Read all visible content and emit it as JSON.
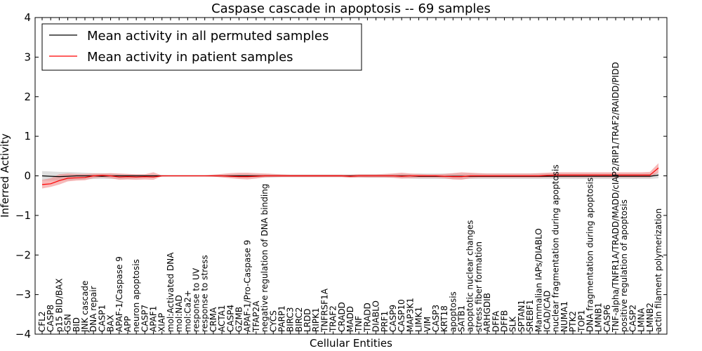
{
  "chart_data": {
    "type": "line",
    "title": "Caspase cascade in apoptosis -- 69 samples",
    "xlabel": "Cellular Entities",
    "ylabel": "Inferred Activity",
    "ylim": [
      -4,
      4
    ],
    "yticks": [
      4,
      3,
      2,
      1,
      0,
      -1,
      -2,
      -3,
      -4
    ],
    "ytick_labels": [
      "4",
      "3",
      "2",
      "1",
      "0",
      "−1",
      "−2",
      "−3",
      "−4"
    ],
    "legend_position": "top-left",
    "categories": [
      "CFL2",
      "CASP8",
      "p15 BID/BAX",
      "GSN",
      "BID",
      "JNK cascade",
      "DNA repair",
      "CASP1",
      "BAX",
      "APAF-1/Caspase 9",
      "APP",
      "neuron apoptosis",
      "CASP7",
      "APAF1",
      "XIAP",
      "mol:Activated DNA",
      "mol:NAD",
      "mol:Ca2+",
      "response to UV",
      "response to stress",
      "CRMA",
      "ACTA1",
      "CASP4",
      "GZMB",
      "APAF-1/Pro-Caspase 9",
      "TFAP2A",
      "negative regulation of DNA binding",
      "CYCS",
      "PARP1",
      "BIRC3",
      "BIRC2",
      "LRDD",
      "RIPK1",
      "TNFRSF1A",
      "TRAF2",
      "CRADD",
      "MADD",
      "TNF",
      "TRADD",
      "DIABLO",
      "PRF1",
      "CASP9",
      "CASP10",
      "MAP3K1",
      "LIMK1",
      "VIM",
      "CASP3",
      "KRT18",
      "apoptosis",
      "SATB1",
      "apoptotic nuclear changes",
      "stress fiber formation",
      "ARHGDIB",
      "DFFA",
      "DFFB",
      "SLK",
      "SPTAN1",
      "SREBF1",
      "Mammalian IAPs/DIABLO",
      "ICAD/CAD",
      "nuclear fragmentation during apoptosis",
      "NUMA1",
      "PTK2",
      "TOP1",
      "DNA fragmentation during apoptosis",
      "LMNB1",
      "CASP6",
      "TNF-alpha/TNFR1A/TRADD/MADD/cIAP2/RIP1/TRAF2/RAIDD/PIDD",
      "positive regulation of apoptosis",
      "CASP2",
      "LMNA",
      "LMNB2",
      "actin filament polymerization"
    ],
    "series": [
      {
        "name": "Mean activity in all permuted samples",
        "color": "#000000",
        "band_color": "#c8c8c8",
        "values": [
          0.0,
          -0.01,
          -0.02,
          -0.01,
          0.0,
          0.0,
          0.0,
          -0.01,
          0.0,
          0.0,
          0.0,
          0.0,
          0.0,
          0.0,
          0.0,
          0.0,
          0.0,
          0.0,
          0.0,
          0.0,
          0.0,
          0.0,
          0.0,
          0.0,
          0.0,
          0.0,
          0.0,
          0.0,
          0.0,
          0.0,
          0.0,
          0.0,
          0.0,
          0.0,
          0.0,
          0.0,
          0.0,
          0.0,
          0.0,
          0.0,
          0.0,
          0.0,
          0.0,
          0.0,
          -0.01,
          -0.01,
          -0.01,
          -0.01,
          -0.01,
          -0.01,
          -0.01,
          -0.01,
          -0.01,
          -0.01,
          -0.01,
          -0.01,
          -0.01,
          -0.01,
          -0.01,
          -0.01,
          -0.01,
          -0.01,
          -0.01,
          -0.01,
          -0.01,
          -0.01,
          -0.01,
          -0.01,
          -0.01,
          -0.01,
          -0.01,
          -0.01,
          0.02
        ],
        "band_upper": [
          0.12,
          0.11,
          0.1,
          0.1,
          0.09,
          0.08,
          0.07,
          0.07,
          0.06,
          0.05,
          0.05,
          0.04,
          0.04,
          0.03,
          0.02,
          0.01,
          0.01,
          0.01,
          0.01,
          0.01,
          0.02,
          0.03,
          0.04,
          0.05,
          0.05,
          0.04,
          0.04,
          0.04,
          0.03,
          0.03,
          0.03,
          0.03,
          0.03,
          0.03,
          0.03,
          0.03,
          0.03,
          0.04,
          0.04,
          0.04,
          0.04,
          0.05,
          0.05,
          0.05,
          0.06,
          0.06,
          0.06,
          0.06,
          0.06,
          0.06,
          0.06,
          0.06,
          0.06,
          0.06,
          0.06,
          0.06,
          0.06,
          0.06,
          0.06,
          0.06,
          0.06,
          0.06,
          0.06,
          0.06,
          0.06,
          0.06,
          0.06,
          0.06,
          0.06,
          0.06,
          0.06,
          0.06,
          0.08
        ],
        "band_lower": [
          -0.12,
          -0.12,
          -0.12,
          -0.11,
          -0.1,
          -0.09,
          -0.08,
          -0.08,
          -0.08,
          -0.08,
          -0.08,
          -0.06,
          -0.05,
          -0.04,
          -0.02,
          -0.01,
          -0.01,
          -0.01,
          -0.01,
          -0.01,
          -0.02,
          -0.03,
          -0.04,
          -0.05,
          -0.05,
          -0.05,
          -0.04,
          -0.04,
          -0.03,
          -0.03,
          -0.03,
          -0.03,
          -0.03,
          -0.03,
          -0.03,
          -0.03,
          -0.04,
          -0.04,
          -0.05,
          -0.05,
          -0.05,
          -0.05,
          -0.06,
          -0.07,
          -0.08,
          -0.08,
          -0.08,
          -0.08,
          -0.08,
          -0.08,
          -0.08,
          -0.08,
          -0.08,
          -0.08,
          -0.08,
          -0.08,
          -0.08,
          -0.08,
          -0.08,
          -0.08,
          -0.08,
          -0.08,
          -0.08,
          -0.08,
          -0.08,
          -0.08,
          -0.08,
          -0.08,
          -0.08,
          -0.08,
          -0.08,
          -0.08,
          -0.06
        ]
      },
      {
        "name": "Mean activity in patient samples",
        "color": "#ff0000",
        "band_color": "#f08080",
        "values": [
          -0.22,
          -0.2,
          -0.12,
          -0.06,
          -0.05,
          -0.04,
          0.0,
          0.01,
          0.0,
          -0.03,
          -0.02,
          -0.03,
          -0.02,
          -0.03,
          0.0,
          0.0,
          0.0,
          0.0,
          0.0,
          0.0,
          0.0,
          0.0,
          -0.01,
          -0.02,
          -0.02,
          -0.01,
          0.0,
          0.0,
          0.0,
          0.0,
          0.0,
          0.0,
          0.0,
          0.0,
          0.0,
          0.0,
          -0.01,
          0.0,
          0.0,
          0.0,
          0.0,
          0.0,
          -0.01,
          0.0,
          0.0,
          0.0,
          0.0,
          -0.01,
          -0.02,
          -0.02,
          0.0,
          0.0,
          0.0,
          0.0,
          0.0,
          0.0,
          0.0,
          0.0,
          0.0,
          0.01,
          0.02,
          0.02,
          0.02,
          0.02,
          0.02,
          0.02,
          0.02,
          0.02,
          0.02,
          0.02,
          0.02,
          0.02,
          0.2
        ],
        "band_upper": [
          -0.1,
          -0.06,
          0.04,
          0.06,
          0.05,
          0.05,
          0.06,
          0.06,
          0.07,
          0.06,
          0.05,
          0.04,
          0.04,
          0.09,
          0.01,
          0.01,
          0.01,
          0.01,
          0.01,
          0.01,
          0.03,
          0.05,
          0.07,
          0.08,
          0.08,
          0.07,
          0.06,
          0.05,
          0.04,
          0.03,
          0.03,
          0.03,
          0.03,
          0.03,
          0.03,
          0.03,
          0.03,
          0.04,
          0.04,
          0.04,
          0.05,
          0.06,
          0.08,
          0.06,
          0.05,
          0.04,
          0.04,
          0.05,
          0.07,
          0.09,
          0.08,
          0.07,
          0.06,
          0.06,
          0.06,
          0.06,
          0.06,
          0.06,
          0.07,
          0.08,
          0.09,
          0.09,
          0.09,
          0.09,
          0.09,
          0.09,
          0.09,
          0.09,
          0.09,
          0.09,
          0.09,
          0.1,
          0.32
        ],
        "band_lower": [
          -0.32,
          -0.28,
          -0.22,
          -0.14,
          -0.12,
          -0.11,
          -0.06,
          -0.04,
          -0.06,
          -0.1,
          -0.09,
          -0.1,
          -0.09,
          -0.1,
          -0.01,
          -0.01,
          -0.01,
          -0.01,
          -0.01,
          -0.01,
          -0.02,
          -0.04,
          -0.06,
          -0.08,
          -0.09,
          -0.07,
          -0.04,
          -0.03,
          -0.03,
          -0.03,
          -0.03,
          -0.03,
          -0.03,
          -0.03,
          -0.03,
          -0.03,
          -0.05,
          -0.04,
          -0.04,
          -0.04,
          -0.04,
          -0.05,
          -0.07,
          -0.06,
          -0.05,
          -0.05,
          -0.05,
          -0.06,
          -0.09,
          -0.1,
          -0.06,
          -0.05,
          -0.05,
          -0.05,
          -0.05,
          -0.05,
          -0.05,
          -0.05,
          -0.05,
          -0.04,
          -0.04,
          -0.04,
          -0.04,
          -0.04,
          -0.04,
          -0.04,
          -0.04,
          -0.04,
          -0.04,
          -0.04,
          -0.04,
          -0.04,
          0.08
        ]
      }
    ]
  }
}
